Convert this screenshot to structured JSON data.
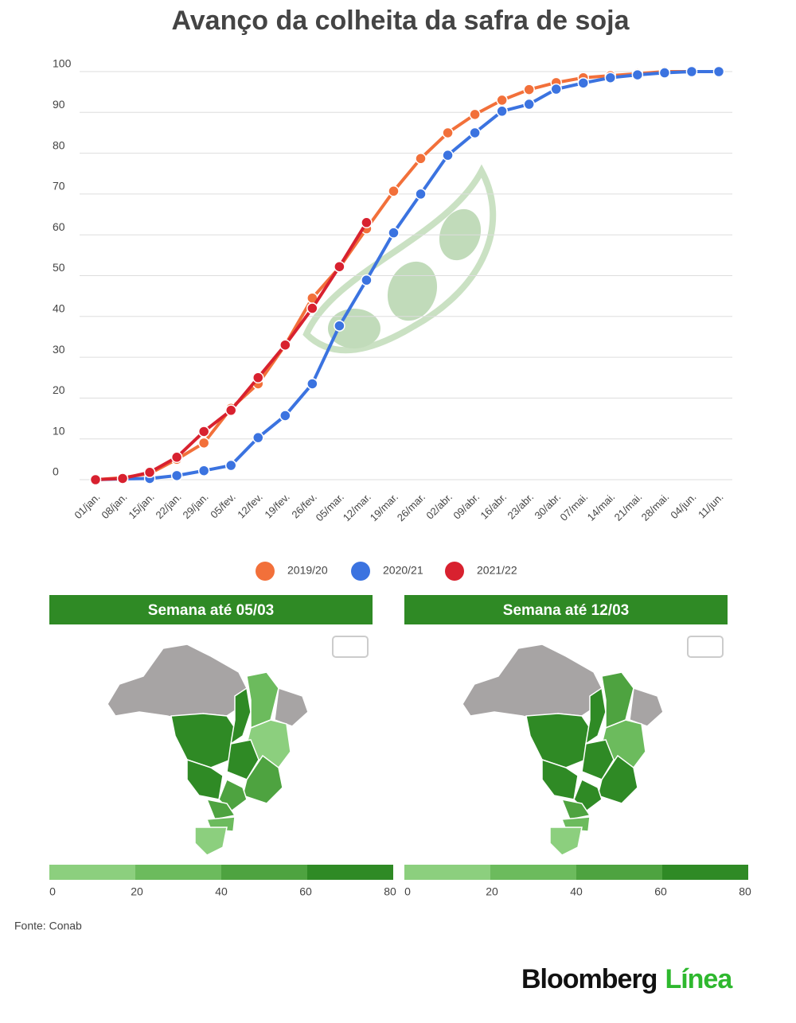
{
  "chart_data": {
    "type": "line",
    "title": "Avanço da colheita da safra de soja",
    "categories": [
      "01/jan.",
      "08/jan.",
      "15/jan.",
      "22/jan.",
      "29/jan.",
      "05/fev.",
      "12/fev.",
      "19/fev.",
      "26/fev.",
      "05/mar.",
      "12/mar.",
      "19/mar.",
      "26/mar.",
      "02/abr.",
      "09/abr.",
      "16/abr.",
      "23/abr.",
      "30/abr.",
      "07/mai.",
      "14/mai.",
      "21/mai.",
      "28/mai.",
      "04/jun.",
      "11/jun."
    ],
    "series": [
      {
        "name": "2019/20",
        "color": "#f2703a",
        "values": [
          0,
          0.5,
          1.5,
          5,
          9,
          17.5,
          23.5,
          33,
          44.5,
          52,
          61.5,
          70.7,
          78.7,
          85,
          89.5,
          93,
          95.6,
          97.3,
          98.5,
          99,
          99.5,
          100,
          100,
          100
        ]
      },
      {
        "name": "2020/21",
        "color": "#3b73e0",
        "values": [
          0,
          0.2,
          0.3,
          1,
          2.2,
          3.5,
          10.3,
          15.7,
          23.5,
          37.7,
          48.9,
          60.5,
          70,
          79.5,
          85,
          90.3,
          92,
          95.7,
          97.2,
          98.5,
          99.2,
          99.7,
          100,
          100
        ]
      },
      {
        "name": "2021/22",
        "color": "#d8212f",
        "values": [
          0,
          0.3,
          1.8,
          5.5,
          11.8,
          17,
          25,
          33,
          42,
          52.2,
          63,
          null,
          null,
          null,
          null,
          null,
          null,
          null,
          null,
          null,
          null,
          null,
          null,
          null
        ]
      }
    ],
    "ylim": [
      0,
      100
    ],
    "yticks": [
      0,
      10,
      20,
      30,
      40,
      50,
      60,
      70,
      80,
      90,
      100
    ],
    "grid": true,
    "legend": "bottom"
  },
  "maps": [
    {
      "title": "Semana até 05/03",
      "scale_ticks": [
        0,
        20,
        40,
        60,
        80
      ]
    },
    {
      "title": "Semana até 12/03",
      "scale_ticks": [
        0,
        20,
        40,
        60,
        80
      ]
    }
  ],
  "scale_colors": [
    "#8ccf7e",
    "#6cbb5d",
    "#4ea340",
    "#2f8a25"
  ],
  "source": "Fonte: Conab",
  "logo": {
    "brand": "Bloomberg",
    "sub": "Línea"
  }
}
